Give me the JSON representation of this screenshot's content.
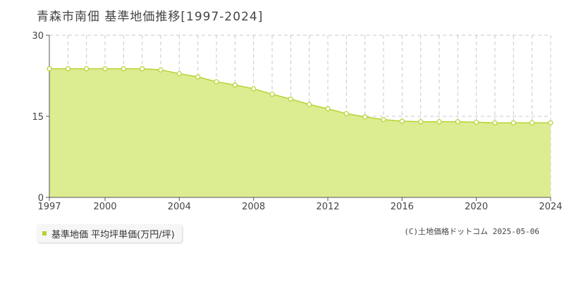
{
  "title": "青森市南佃 基準地価推移[1997-2024]",
  "legend_label": "基準地価 平均坪単価(万円/坪)",
  "copyright": "(C)土地価格ドットコム 2025-05-06",
  "colors": {
    "fill": "#dcec90",
    "line": "#b5d332",
    "grid": "#c8c8c8",
    "axis": "#555555"
  },
  "chart_data": {
    "type": "area",
    "title": "青森市南佃 基準地価推移[1997-2024]",
    "x": [
      1997,
      1998,
      1999,
      2000,
      2001,
      2002,
      2003,
      2004,
      2005,
      2006,
      2007,
      2008,
      2009,
      2010,
      2011,
      2012,
      2013,
      2014,
      2015,
      2016,
      2017,
      2018,
      2019,
      2020,
      2021,
      2022,
      2023,
      2024
    ],
    "series": [
      {
        "name": "基準地価 平均坪単価(万円/坪)",
        "values": [
          23.8,
          23.8,
          23.8,
          23.8,
          23.8,
          23.8,
          23.6,
          22.9,
          22.3,
          21.4,
          20.8,
          20.1,
          19.1,
          18.2,
          17.2,
          16.4,
          15.5,
          14.9,
          14.4,
          14.1,
          14.0,
          14.0,
          14.0,
          13.9,
          13.8,
          13.8,
          13.8,
          13.8
        ]
      }
    ],
    "xticks": [
      "1997",
      "2000",
      "2004",
      "2008",
      "2012",
      "2016",
      "2020",
      "2024"
    ],
    "yticks": [
      "0",
      "15",
      "30"
    ],
    "ylim": [
      0,
      30
    ],
    "xlim": [
      1997,
      2024
    ],
    "grid": true
  }
}
